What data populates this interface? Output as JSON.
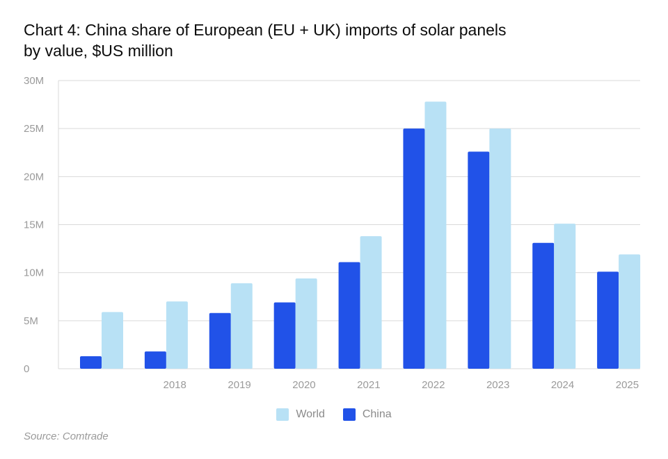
{
  "title": "Chart 4: China share of European (EU + UK) imports of solar panels\nby value, $US million",
  "source": "Source: Comtrade",
  "colors": {
    "world": "#b8e1f5",
    "china": "#2152e8",
    "grid": "#d9d9d9"
  },
  "legend": {
    "world_label": "World",
    "china_label": "China"
  },
  "chart_data": {
    "type": "bar",
    "title": "Chart 4: China share of European (EU + UK) imports of solar panels by value, $US million",
    "categories": [
      "",
      "2018",
      "2019",
      "2020",
      "2021",
      "2022",
      "2023",
      "2024",
      "2025"
    ],
    "series": [
      {
        "name": "China",
        "values": [
          1.3,
          1.8,
          5.8,
          6.9,
          11.1,
          25.0,
          22.6,
          13.1,
          10.1
        ]
      },
      {
        "name": "World",
        "values": [
          5.9,
          7.0,
          8.9,
          9.4,
          13.8,
          27.8,
          25.0,
          15.1,
          11.9
        ]
      }
    ],
    "ylim": [
      0,
      30
    ],
    "yticks": [
      0,
      5,
      10,
      15,
      20,
      25,
      30
    ],
    "ytick_labels": [
      "0",
      "5M",
      "10M",
      "15M",
      "20M",
      "25M",
      "30M"
    ],
    "xlabel": "",
    "ylabel": "",
    "grid": true,
    "legend_position": "bottom"
  }
}
